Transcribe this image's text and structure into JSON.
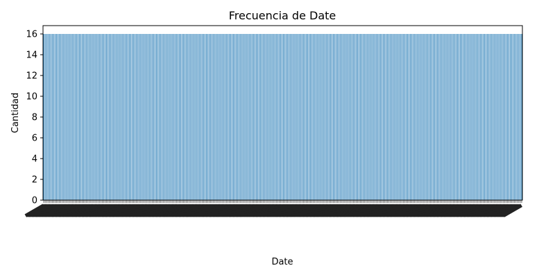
{
  "chart_data": {
    "type": "bar",
    "title": "Frecuencia de Date",
    "xlabel": "Date",
    "ylabel": "Cantidad",
    "yticks": [
      "0",
      "2",
      "4",
      "6",
      "8",
      "10",
      "12",
      "14",
      "16"
    ],
    "ylim": [
      0,
      16.8
    ],
    "bar_count": 336,
    "bar_value": 16,
    "x_tick_labels_legible": false,
    "colors": {
      "bar": "#1f77b4",
      "axis": "#000000"
    },
    "grid": false,
    "legend": "none"
  }
}
